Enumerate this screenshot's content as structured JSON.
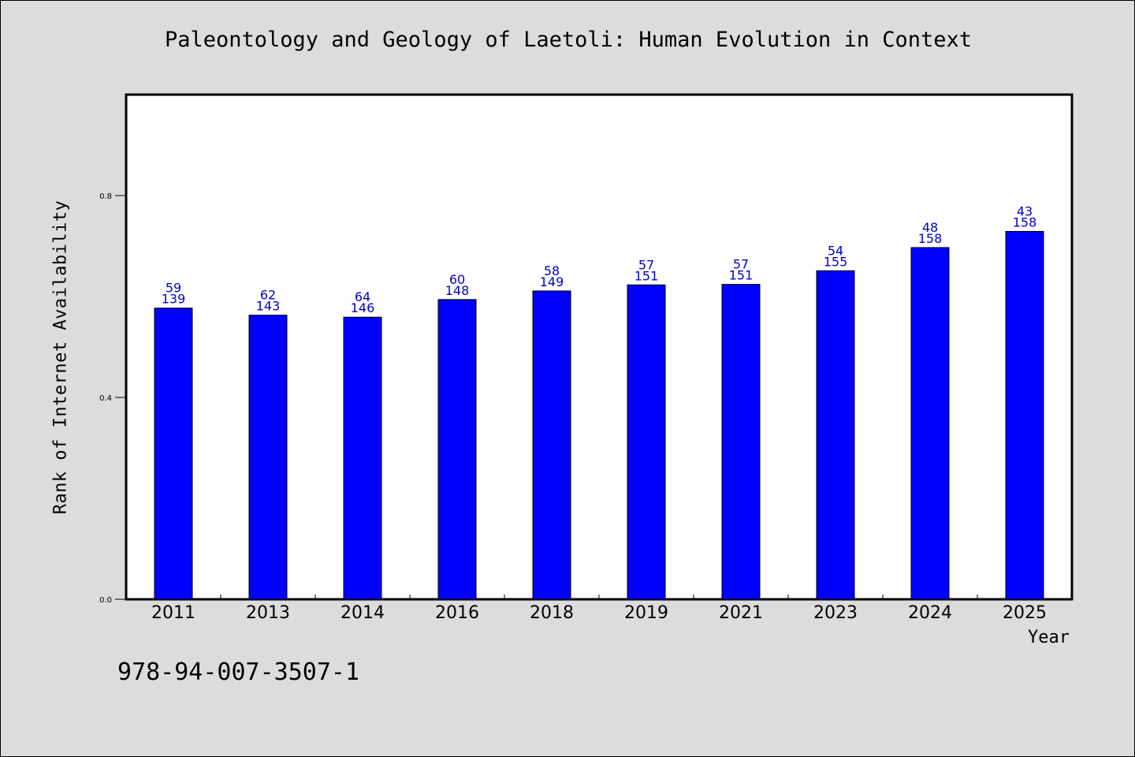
{
  "chart_data": {
    "type": "bar",
    "title": "Paleontology and Geology of Laetoli: Human Evolution in Context",
    "xlabel": "Year",
    "ylabel": "Rank of Internet Availability",
    "categories": [
      "2011",
      "2013",
      "2014",
      "2016",
      "2018",
      "2019",
      "2021",
      "2023",
      "2024",
      "2025"
    ],
    "values": [
      0.577,
      0.563,
      0.559,
      0.594,
      0.611,
      0.623,
      0.624,
      0.651,
      0.697,
      0.729
    ],
    "label_top": [
      "59",
      "62",
      "64",
      "60",
      "58",
      "57",
      "57",
      "54",
      "48",
      "43"
    ],
    "label_bottom": [
      "139",
      "143",
      "146",
      "148",
      "149",
      "151",
      "151",
      "155",
      "158",
      "158"
    ],
    "yticks": [
      "0.0",
      "0.4",
      "0.8"
    ],
    "ylim": [
      0,
      1.0
    ],
    "grid": false,
    "legend": "none",
    "bar_color": "#0000ff",
    "label_color": "#0000cc",
    "background": "#dcdcdc"
  },
  "footnote": "978-94-007-3507-1"
}
